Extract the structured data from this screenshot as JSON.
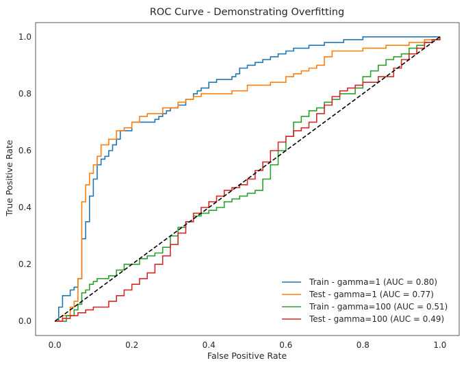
{
  "chart_data": {
    "type": "line",
    "title": "ROC Curve - Demonstrating Overfitting",
    "xlabel": "False Positive Rate",
    "ylabel": "True Positive Rate",
    "xlim": [
      -0.05,
      1.05
    ],
    "ylim": [
      -0.05,
      1.05
    ],
    "xticks": [
      "0.0",
      "0.2",
      "0.4",
      "0.6",
      "0.8",
      "1.0"
    ],
    "yticks": [
      "0.0",
      "0.2",
      "0.4",
      "0.6",
      "0.8",
      "1.0"
    ],
    "grid": false,
    "legend_position": "lower-right",
    "series": [
      {
        "name": "Train - gamma=1 (AUC = 0.80)",
        "color": "#1f77b4",
        "x": [
          0,
          0.01,
          0.02,
          0.04,
          0.05,
          0.06,
          0.07,
          0.08,
          0.09,
          0.1,
          0.11,
          0.12,
          0.13,
          0.14,
          0.15,
          0.16,
          0.17,
          0.18,
          0.2,
          0.22,
          0.24,
          0.26,
          0.27,
          0.28,
          0.29,
          0.3,
          0.32,
          0.34,
          0.36,
          0.37,
          0.38,
          0.4,
          0.42,
          0.44,
          0.46,
          0.47,
          0.48,
          0.5,
          0.52,
          0.54,
          0.56,
          0.58,
          0.6,
          0.62,
          0.66,
          0.7,
          0.75,
          0.78,
          0.8,
          0.85,
          0.9,
          0.95,
          1.0
        ],
        "y": [
          0,
          0.05,
          0.09,
          0.11,
          0.12,
          0.15,
          0.29,
          0.35,
          0.44,
          0.5,
          0.55,
          0.57,
          0.58,
          0.6,
          0.62,
          0.64,
          0.67,
          0.67,
          0.7,
          0.7,
          0.7,
          0.71,
          0.72,
          0.73,
          0.74,
          0.75,
          0.76,
          0.78,
          0.8,
          0.81,
          0.82,
          0.84,
          0.85,
          0.85,
          0.86,
          0.87,
          0.89,
          0.9,
          0.91,
          0.92,
          0.93,
          0.94,
          0.95,
          0.96,
          0.97,
          0.98,
          0.99,
          0.99,
          1.0,
          1.0,
          1.0,
          1.0,
          1.0
        ]
      },
      {
        "name": "Test - gamma=1 (AUC = 0.77)",
        "color": "#ff7f0e",
        "x": [
          0,
          0.02,
          0.04,
          0.05,
          0.06,
          0.07,
          0.08,
          0.09,
          0.1,
          0.11,
          0.12,
          0.14,
          0.16,
          0.18,
          0.2,
          0.22,
          0.24,
          0.28,
          0.32,
          0.34,
          0.36,
          0.38,
          0.4,
          0.46,
          0.5,
          0.56,
          0.6,
          0.62,
          0.64,
          0.66,
          0.68,
          0.7,
          0.72,
          0.74,
          0.8,
          0.86,
          0.92,
          0.96,
          0.98,
          1.0
        ],
        "y": [
          0,
          0.02,
          0.05,
          0.07,
          0.15,
          0.42,
          0.48,
          0.52,
          0.55,
          0.58,
          0.62,
          0.64,
          0.67,
          0.68,
          0.7,
          0.72,
          0.73,
          0.75,
          0.77,
          0.78,
          0.79,
          0.8,
          0.8,
          0.81,
          0.83,
          0.84,
          0.86,
          0.87,
          0.88,
          0.89,
          0.9,
          0.93,
          0.95,
          0.95,
          0.96,
          0.97,
          0.98,
          0.99,
          0.99,
          1.0
        ]
      },
      {
        "name": "Train - gamma=100 (AUC = 0.51)",
        "color": "#2ca02c",
        "x": [
          0,
          0.03,
          0.05,
          0.06,
          0.07,
          0.08,
          0.09,
          0.1,
          0.11,
          0.12,
          0.14,
          0.16,
          0.18,
          0.2,
          0.22,
          0.24,
          0.26,
          0.28,
          0.3,
          0.32,
          0.34,
          0.36,
          0.38,
          0.4,
          0.42,
          0.44,
          0.46,
          0.48,
          0.5,
          0.52,
          0.54,
          0.56,
          0.58,
          0.6,
          0.62,
          0.64,
          0.66,
          0.68,
          0.7,
          0.72,
          0.74,
          0.76,
          0.78,
          0.8,
          0.82,
          0.84,
          0.86,
          0.88,
          0.9,
          0.92,
          0.94,
          0.96,
          0.98,
          1.0
        ],
        "y": [
          0,
          0.02,
          0.04,
          0.06,
          0.1,
          0.11,
          0.13,
          0.14,
          0.15,
          0.15,
          0.16,
          0.18,
          0.2,
          0.2,
          0.22,
          0.23,
          0.24,
          0.26,
          0.3,
          0.33,
          0.35,
          0.37,
          0.38,
          0.39,
          0.4,
          0.42,
          0.43,
          0.44,
          0.45,
          0.46,
          0.5,
          0.55,
          0.6,
          0.65,
          0.7,
          0.72,
          0.74,
          0.75,
          0.77,
          0.78,
          0.8,
          0.8,
          0.82,
          0.86,
          0.88,
          0.9,
          0.92,
          0.93,
          0.94,
          0.96,
          0.97,
          0.98,
          0.99,
          1.0
        ]
      },
      {
        "name": "Test - gamma=100 (AUC = 0.49)",
        "color": "#d62728",
        "x": [
          0,
          0.02,
          0.04,
          0.06,
          0.08,
          0.1,
          0.12,
          0.14,
          0.16,
          0.18,
          0.2,
          0.22,
          0.24,
          0.26,
          0.28,
          0.3,
          0.32,
          0.34,
          0.36,
          0.38,
          0.4,
          0.42,
          0.44,
          0.46,
          0.48,
          0.5,
          0.52,
          0.54,
          0.56,
          0.58,
          0.6,
          0.62,
          0.64,
          0.66,
          0.68,
          0.7,
          0.72,
          0.74,
          0.76,
          0.78,
          0.8,
          0.84,
          0.88,
          0.9,
          0.92,
          0.94,
          0.96,
          0.98,
          1.0
        ],
        "y": [
          0,
          0.01,
          0.02,
          0.03,
          0.04,
          0.05,
          0.05,
          0.07,
          0.09,
          0.11,
          0.13,
          0.15,
          0.17,
          0.2,
          0.23,
          0.27,
          0.31,
          0.35,
          0.38,
          0.4,
          0.42,
          0.44,
          0.46,
          0.47,
          0.48,
          0.5,
          0.53,
          0.56,
          0.6,
          0.63,
          0.65,
          0.67,
          0.68,
          0.7,
          0.73,
          0.76,
          0.79,
          0.81,
          0.82,
          0.83,
          0.84,
          0.86,
          0.89,
          0.92,
          0.94,
          0.96,
          0.98,
          0.99,
          1.0
        ]
      }
    ],
    "reference_line": {
      "x": [
        0,
        1
      ],
      "y": [
        0,
        1
      ],
      "color": "#000000",
      "style": "dashed"
    }
  }
}
